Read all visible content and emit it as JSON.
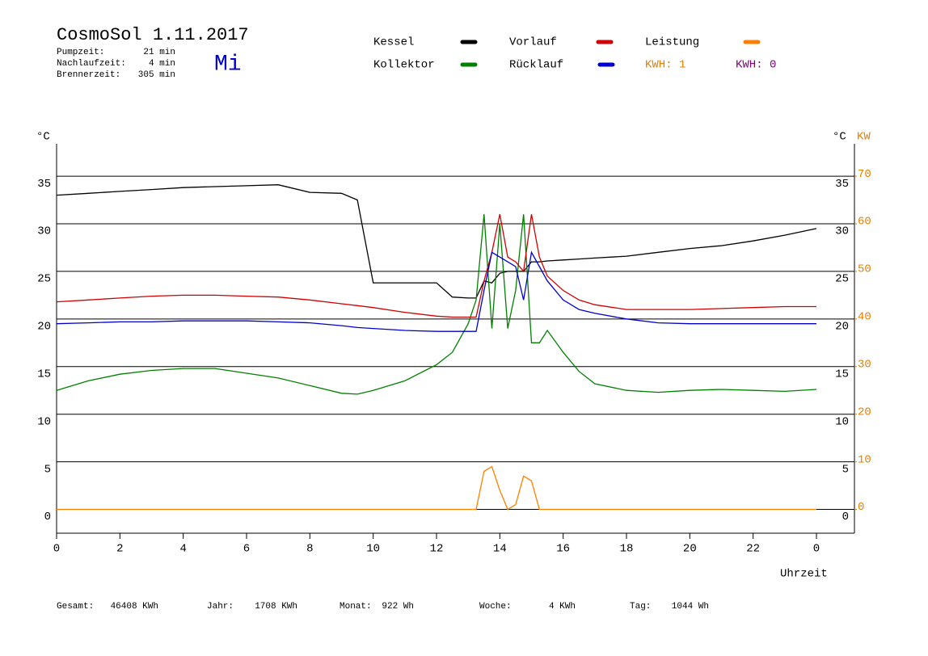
{
  "chart_data": {
    "type": "line",
    "title": "CosmoSol 1.11.2017",
    "weekday": "Mi",
    "info": [
      {
        "label": "Pumpzeit:",
        "value": "21 min"
      },
      {
        "label": "Nachlaufzeit:",
        "value": "4 min"
      },
      {
        "label": "Brennerzeit:",
        "value": "305 min"
      }
    ],
    "kwh_labels": [
      {
        "text": "KWH: 1",
        "color": "#e08000"
      },
      {
        "text": "KWH: 0",
        "color": "#800080"
      }
    ],
    "y_unit": "°C",
    "y2_unit": "KW",
    "x_label": "Uhrzeit",
    "x": [
      0,
      1,
      2,
      3,
      4,
      5,
      6,
      7,
      8,
      9,
      9.5,
      10,
      11,
      12,
      12.5,
      13,
      13.25,
      13.5,
      13.75,
      14,
      14.25,
      14.5,
      14.75,
      15,
      15.25,
      15.5,
      16,
      16.5,
      17,
      18,
      19,
      20,
      21,
      22,
      23,
      24
    ],
    "series": [
      {
        "name": "Kessel",
        "color": "#000000",
        "values": [
          33,
          33.2,
          33.4,
          33.6,
          33.8,
          33.9,
          34,
          34.1,
          33.3,
          33.2,
          32.5,
          23.8,
          23.8,
          23.8,
          22.3,
          22.2,
          22.2,
          24,
          23.8,
          24.8,
          25,
          25,
          25,
          26,
          26,
          26.1,
          26.2,
          26.3,
          26.4,
          26.6,
          27,
          27.4,
          27.7,
          28.2,
          28.8,
          29.5
        ]
      },
      {
        "name": "Kollektor",
        "color": "#008000",
        "values": [
          12.5,
          13.5,
          14.2,
          14.6,
          14.8,
          14.8,
          14.3,
          13.8,
          13,
          12.2,
          12.1,
          12.5,
          13.5,
          15.2,
          16.5,
          19.5,
          22,
          31,
          19,
          30,
          19,
          23,
          31,
          17.5,
          17.5,
          18.8,
          16.5,
          14.5,
          13.2,
          12.5,
          12.3,
          12.5,
          12.6,
          12.5,
          12.4,
          12.6
        ]
      },
      {
        "name": "Vorlauf",
        "color": "#d00000",
        "values": [
          21.8,
          22,
          22.2,
          22.4,
          22.5,
          22.5,
          22.4,
          22.3,
          22,
          21.6,
          21.4,
          21.2,
          20.7,
          20.3,
          20.2,
          20.2,
          20.2,
          24,
          27,
          31,
          26.5,
          26,
          25,
          31,
          26.5,
          24.5,
          23,
          22,
          21.5,
          21,
          21,
          21,
          21.1,
          21.2,
          21.3,
          21.3
        ]
      },
      {
        "name": "Rücklauf",
        "color": "#0000cc",
        "values": [
          19.5,
          19.6,
          19.7,
          19.7,
          19.8,
          19.8,
          19.8,
          19.7,
          19.6,
          19.3,
          19.1,
          19,
          18.8,
          18.7,
          18.7,
          18.7,
          18.7,
          23,
          27,
          26.5,
          26,
          25.5,
          22,
          27,
          25.5,
          24,
          22,
          21,
          20.6,
          20,
          19.6,
          19.5,
          19.5,
          19.5,
          19.5,
          19.5
        ]
      },
      {
        "name": "Leistung",
        "color": "#ff8000",
        "axis": "y2",
        "values": [
          0,
          0,
          0,
          0,
          0,
          0,
          0,
          0,
          0,
          0,
          0,
          0,
          0,
          0,
          0,
          0,
          0,
          8,
          9,
          4,
          0,
          1,
          7,
          6,
          0,
          0,
          0,
          0,
          0,
          0,
          0,
          0,
          0,
          0,
          0,
          0
        ]
      }
    ],
    "xlim": [
      0,
      25.2
    ],
    "xticks": [
      0,
      2,
      4,
      6,
      8,
      10,
      12,
      14,
      16,
      18,
      20,
      22,
      {
        "value": 24,
        "label": "0"
      }
    ],
    "ylim": [
      -2.5,
      38.4
    ],
    "yticks": [
      0,
      5,
      10,
      15,
      20,
      25,
      30,
      35
    ],
    "y2lim": [
      -5,
      76.8
    ],
    "y2ticks": [
      0,
      10,
      20,
      30,
      40,
      50,
      60,
      70
    ],
    "y2_color": "#e08000",
    "grid": true,
    "stats": [
      {
        "label": "Gesamt:",
        "value": "46408 KWh"
      },
      {
        "label": "Jahr:",
        "value": "1708 KWh"
      },
      {
        "label": "Monat:",
        "value": "922 Wh"
      },
      {
        "label": "Woche:",
        "value": "4 KWh"
      },
      {
        "label": "Tag:",
        "value": "1044 Wh"
      }
    ]
  }
}
